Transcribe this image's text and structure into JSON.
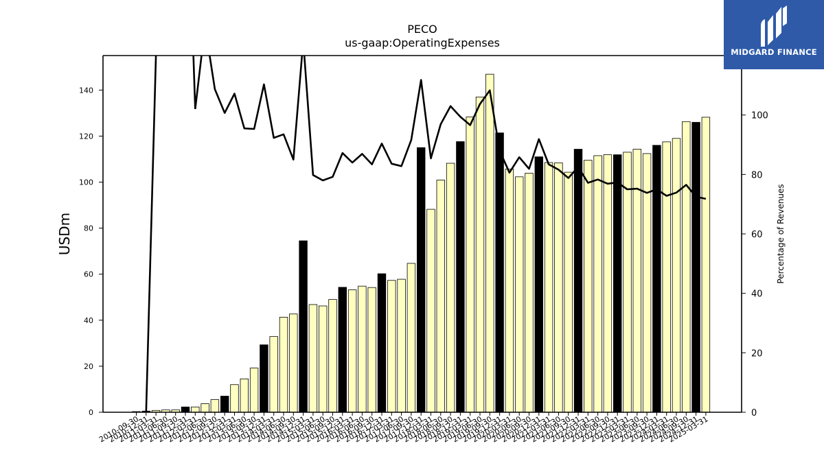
{
  "logo": {
    "text": "MIDGARD FINANCE",
    "background": "#2e5aa8"
  },
  "colors": {
    "bar_normal": "#ffffc0",
    "bar_highlight": "#000000",
    "line": "#000000"
  },
  "chart_data": {
    "type": "bar",
    "title": "PECO",
    "subtitle": "us-gaap:OperatingExpenses",
    "ylabel": "USDm",
    "y2label": "Percentage of Revenues",
    "ylim": [
      0,
      155
    ],
    "y2lim": [
      0,
      120
    ],
    "yticks": [
      0,
      20,
      40,
      60,
      80,
      100,
      120,
      140
    ],
    "y2ticks": [
      0,
      20,
      40,
      60,
      80,
      100
    ],
    "categories": [
      "2010-09-30",
      "2010-12-31",
      "2011-03-31",
      "2011-06-30",
      "2011-09-30",
      "2011-12-31",
      "2012-03-31",
      "2012-06-30",
      "2012-09-30",
      "2012-12-31",
      "2013-03-31",
      "2013-06-30",
      "2013-09-30",
      "2013-12-31",
      "2014-03-31",
      "2014-06-30",
      "2014-09-30",
      "2014-12-31",
      "2015-03-31",
      "2015-06-30",
      "2015-09-30",
      "2015-12-31",
      "2016-03-31",
      "2016-06-30",
      "2016-09-30",
      "2016-12-31",
      "2017-03-31",
      "2017-06-30",
      "2017-09-30",
      "2017-12-31",
      "2018-03-31",
      "2018-06-30",
      "2018-09-30",
      "2018-12-31",
      "2019-03-31",
      "2019-06-30",
      "2019-09-30",
      "2019-12-31",
      "2020-03-31",
      "2020-06-30",
      "2020-09-30",
      "2020-12-31",
      "2021-03-31",
      "2021-06-30",
      "2021-09-30",
      "2021-12-31",
      "2022-03-31",
      "2022-06-30",
      "2022-09-30",
      "2022-12-31",
      "2023-03-31",
      "2023-06-30",
      "2023-09-30",
      "2023-12-31",
      "2024-03-31",
      "2024-06-30",
      "2024-09-30",
      "2024-12-31",
      "2025-03-31"
    ],
    "series": [
      {
        "type": "bar",
        "values": [
          0.3,
          0.5,
          0.8,
          1.0,
          1.0,
          2.3,
          2.3,
          3.7,
          5.5,
          7.0,
          12.0,
          14.5,
          19.2,
          29.3,
          32.9,
          41.3,
          42.7,
          74.5,
          46.8,
          46.2,
          49.0,
          54.3,
          53.2,
          54.8,
          54.2,
          60.2,
          57.3,
          57.8,
          64.7,
          115.0,
          88.2,
          100.9,
          108.2,
          117.6,
          128.3,
          137.0,
          146.9,
          121.4,
          105.7,
          102.3,
          103.9,
          111.0,
          108.5,
          108.4,
          104.3,
          114.3,
          109.5,
          111.5,
          111.9,
          111.9,
          113.0,
          114.3,
          112.4,
          116.0,
          117.5,
          119.0,
          126.3,
          126.0,
          128.2
        ],
        "highlight": [
          false,
          true,
          false,
          false,
          false,
          true,
          false,
          false,
          false,
          true,
          false,
          false,
          false,
          true,
          false,
          false,
          false,
          true,
          false,
          false,
          false,
          true,
          false,
          false,
          false,
          true,
          false,
          false,
          false,
          true,
          false,
          false,
          false,
          true,
          false,
          false,
          false,
          true,
          false,
          false,
          false,
          true,
          false,
          false,
          false,
          true,
          false,
          false,
          false,
          true,
          false,
          false,
          false,
          true,
          false,
          false,
          false,
          true,
          false
        ]
      },
      {
        "type": "line",
        "axis": "right",
        "values": [
          null,
          0.0,
          120.0,
          null,
          null,
          null,
          102.0,
          130.0,
          108.7,
          100.7,
          107.2,
          95.5,
          95.3,
          110.3,
          92.3,
          93.5,
          85.0,
          125.0,
          79.8,
          78.0,
          79.2,
          87.2,
          84.0,
          86.9,
          83.4,
          90.4,
          83.6,
          82.8,
          91.6,
          111.8,
          85.4,
          96.9,
          103.0,
          99.4,
          96.6,
          103.7,
          108.3,
          88.0,
          80.6,
          85.8,
          81.9,
          91.9,
          83.4,
          81.6,
          78.8,
          82.5,
          77.2,
          78.3,
          76.9,
          77.3,
          75.0,
          75.2,
          73.8,
          75.0,
          72.8,
          73.9,
          76.5,
          72.5,
          71.8
        ]
      }
    ],
    "grid": false
  }
}
